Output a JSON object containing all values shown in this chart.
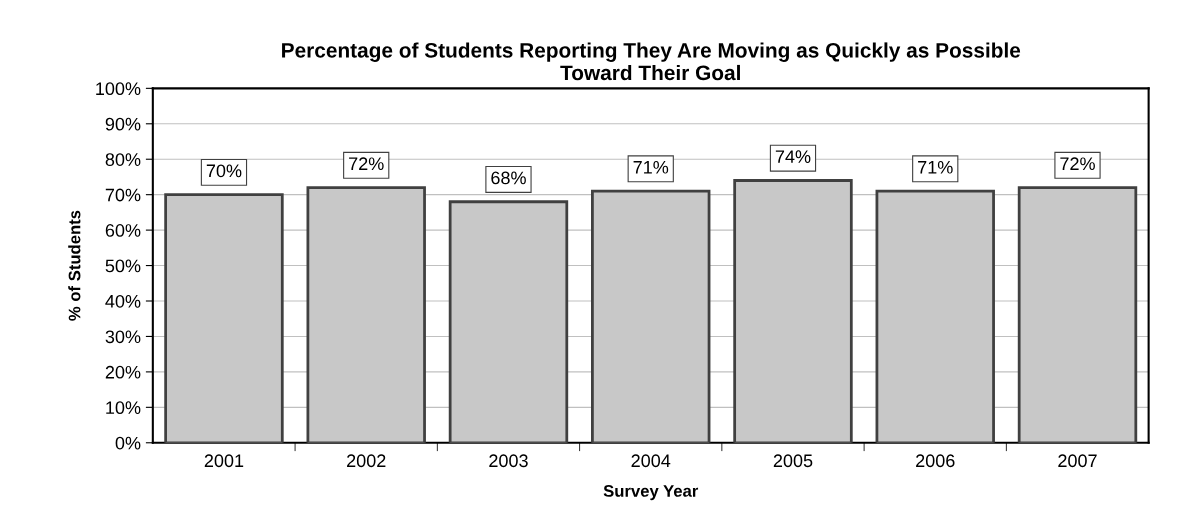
{
  "chart_data": {
    "type": "bar",
    "title": "Percentage of Students Reporting They Are Moving as Quickly as Possible\nToward Their Goal",
    "xlabel": "Survey Year",
    "ylabel": "% of Students",
    "categories": [
      "2001",
      "2002",
      "2003",
      "2004",
      "2005",
      "2006",
      "2007"
    ],
    "values": [
      70,
      72,
      68,
      71,
      74,
      71,
      72
    ],
    "value_labels": [
      "70%",
      "72%",
      "68%",
      "71%",
      "74%",
      "71%",
      "72%"
    ],
    "color": "#c8c8c8",
    "ylim": [
      0,
      100
    ],
    "yticks": [
      {
        "value": 0,
        "label": "0%"
      },
      {
        "value": 10,
        "label": "10%"
      },
      {
        "value": 20,
        "label": "20%"
      },
      {
        "value": 30,
        "label": "30%"
      },
      {
        "value": 40,
        "label": "40%"
      },
      {
        "value": 50,
        "label": "50%"
      },
      {
        "value": 60,
        "label": "60%"
      },
      {
        "value": 70,
        "label": "70%"
      },
      {
        "value": 80,
        "label": "80%"
      },
      {
        "value": 90,
        "label": "90%"
      },
      {
        "value": 100,
        "label": "100%"
      }
    ],
    "grid": "y"
  }
}
